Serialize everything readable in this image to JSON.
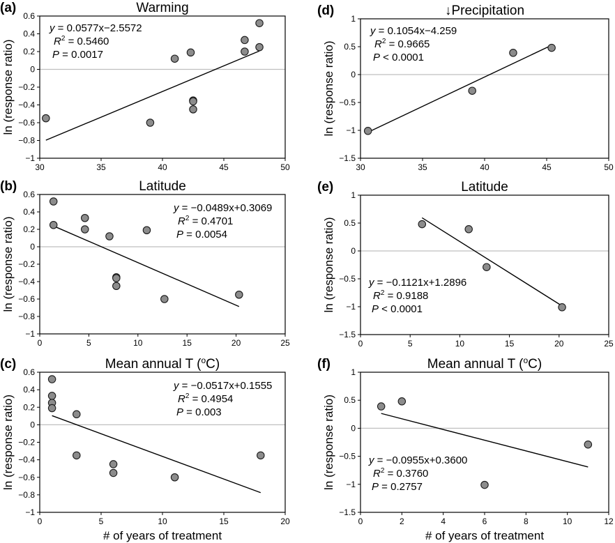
{
  "chart_data": [
    {
      "id": "a",
      "panel_label": "(a)",
      "type": "scatter",
      "title": "Warming",
      "xlabel": "",
      "ylabel": "ln (response ratio)",
      "xlim": [
        30,
        50
      ],
      "ylim": [
        -1,
        0.6
      ],
      "xticks": [
        "30",
        "35",
        "40",
        "45",
        "50"
      ],
      "yticks": [
        "−1",
        "−0.8",
        "−0.6",
        "−0.4",
        "−0.2",
        "0",
        "0.2",
        "0.4",
        "0.6"
      ],
      "ytick_values": [
        -1,
        -0.8,
        -0.6,
        -0.4,
        -0.2,
        0,
        0.2,
        0.4,
        0.6
      ],
      "xtick_values": [
        30,
        35,
        40,
        45,
        50
      ],
      "points": [
        [
          30.5,
          -0.55
        ],
        [
          39,
          -0.6
        ],
        [
          41,
          0.12
        ],
        [
          42.3,
          0.19
        ],
        [
          42.5,
          -0.35
        ],
        [
          42.5,
          -0.36
        ],
        [
          42.5,
          -0.45
        ],
        [
          46.7,
          0.33
        ],
        [
          46.7,
          0.2
        ],
        [
          47.9,
          0.52
        ],
        [
          47.9,
          0.25
        ]
      ],
      "fit": {
        "x": [
          30.5,
          47.9
        ],
        "slope": 0.0577,
        "intercept": -2.5572
      },
      "stats": {
        "eq": "y = 0.0577x−2.5572",
        "r2": "R2 = 0.5460",
        "p": "P = 0.0017"
      },
      "stats_pos": "top-left"
    },
    {
      "id": "b",
      "panel_label": "(b)",
      "type": "scatter",
      "title": "Latitude",
      "xlabel": "",
      "ylabel": "ln (response ratio)",
      "xlim": [
        0,
        25
      ],
      "ylim": [
        -1,
        0.6
      ],
      "xticks": [
        "0",
        "5",
        "10",
        "15",
        "20",
        "25"
      ],
      "xtick_values": [
        0,
        5,
        10,
        15,
        20,
        25
      ],
      "yticks": [
        "−1",
        "−0.8",
        "−0.6",
        "−0.4",
        "−0.2",
        "0",
        "0.2",
        "0.4",
        "0.6"
      ],
      "ytick_values": [
        -1,
        -0.8,
        -0.6,
        -0.4,
        -0.2,
        0,
        0.2,
        0.4,
        0.6
      ],
      "points": [
        [
          1.4,
          0.52
        ],
        [
          1.4,
          0.25
        ],
        [
          4.6,
          0.33
        ],
        [
          4.6,
          0.2
        ],
        [
          7.1,
          0.12
        ],
        [
          7.8,
          -0.35
        ],
        [
          7.8,
          -0.36
        ],
        [
          7.8,
          -0.45
        ],
        [
          10.9,
          0.19
        ],
        [
          12.7,
          -0.6
        ],
        [
          20.3,
          -0.55
        ]
      ],
      "fit": {
        "x": [
          1.4,
          20.3
        ],
        "slope": -0.0489,
        "intercept": 0.3069
      },
      "stats": {
        "eq": "y = −0.0489x+0.3069",
        "r2": "R2 = 0.4701",
        "p": "P = 0.0054"
      },
      "stats_pos": "top-right"
    },
    {
      "id": "c",
      "panel_label": "(c)",
      "type": "scatter",
      "title": "Mean annual T (oC)",
      "xlabel": "# of years of treatment",
      "ylabel": "ln (response ratio)",
      "xlim": [
        0,
        20
      ],
      "ylim": [
        -1,
        0.6
      ],
      "xticks": [
        "0",
        "5",
        "10",
        "15",
        "20"
      ],
      "xtick_values": [
        0,
        5,
        10,
        15,
        20
      ],
      "yticks": [
        "−1",
        "−0.8",
        "−0.6",
        "−0.4",
        "−0.2",
        "0",
        "0.2",
        "0.4",
        "0.6"
      ],
      "ytick_values": [
        -1,
        -0.8,
        -0.6,
        -0.4,
        -0.2,
        0,
        0.2,
        0.4,
        0.6
      ],
      "points": [
        [
          1,
          0.52
        ],
        [
          1,
          0.33
        ],
        [
          1,
          0.25
        ],
        [
          1,
          0.19
        ],
        [
          3,
          0.12
        ],
        [
          3,
          -0.35
        ],
        [
          6,
          -0.45
        ],
        [
          6,
          -0.55
        ],
        [
          11,
          -0.6
        ],
        [
          18,
          -0.35
        ]
      ],
      "fit": {
        "x": [
          1,
          18
        ],
        "slope": -0.0517,
        "intercept": 0.1555
      },
      "stats": {
        "eq": "y = −0.0517x+0.1555",
        "r2": "R2 = 0.4954",
        "p": "P = 0.003"
      },
      "stats_pos": "top-right"
    },
    {
      "id": "d",
      "panel_label": "(d)",
      "type": "scatter",
      "title": "↓Precipitation",
      "xlabel": "",
      "ylabel": "ln (response ratio)",
      "xlim": [
        30,
        50
      ],
      "ylim": [
        -1.5,
        1
      ],
      "xticks": [
        "30",
        "35",
        "40",
        "45",
        "50"
      ],
      "xtick_values": [
        30,
        35,
        40,
        45,
        50
      ],
      "yticks": [
        "−1.5",
        "−1",
        "−0.5",
        "0",
        "0.5",
        "1"
      ],
      "ytick_values": [
        -1.5,
        -1,
        -0.5,
        0,
        0.5,
        1
      ],
      "points": [
        [
          30.6,
          -1.01
        ],
        [
          39,
          -0.29
        ],
        [
          42.3,
          0.39
        ],
        [
          45.4,
          0.48
        ]
      ],
      "fit": {
        "x": [
          30.6,
          45.4
        ],
        "slope": 0.1054,
        "intercept": -4.259
      },
      "stats": {
        "eq": "y = 0.1054x−4.259",
        "r2": "R2 = 0.9665",
        "p": "P < 0.0001"
      },
      "stats_pos": "top-left"
    },
    {
      "id": "e",
      "panel_label": "(e)",
      "type": "scatter",
      "title": "Latitude",
      "xlabel": "",
      "ylabel": "ln (response ratio)",
      "xlim": [
        0,
        25
      ],
      "ylim": [
        -1.5,
        1
      ],
      "xticks": [
        "0",
        "5",
        "10",
        "15",
        "20",
        "25"
      ],
      "xtick_values": [
        0,
        5,
        10,
        15,
        20,
        25
      ],
      "yticks": [
        "−1.5",
        "−1",
        "−0.5",
        "0",
        "0.5",
        "1"
      ],
      "ytick_values": [
        -1.5,
        -1,
        -0.5,
        0,
        0.5,
        1
      ],
      "points": [
        [
          6.2,
          0.48
        ],
        [
          10.9,
          0.39
        ],
        [
          12.7,
          -0.29
        ],
        [
          20.3,
          -1.01
        ]
      ],
      "fit": {
        "x": [
          6.2,
          20.3
        ],
        "slope": -0.1121,
        "intercept": 1.2896
      },
      "stats": {
        "eq": "y = −0.1121x+1.2896",
        "r2": "R2 = 0.9188",
        "p": "P < 0.0001"
      },
      "stats_pos": "bottom-left"
    },
    {
      "id": "f",
      "panel_label": "(f)",
      "type": "scatter",
      "title": "Mean annual T (oC)",
      "xlabel": "# of years of treatment",
      "ylabel": "ln (response ratio)",
      "xlim": [
        0,
        12
      ],
      "ylim": [
        -1.5,
        1
      ],
      "xticks": [
        "0",
        "2",
        "4",
        "6",
        "8",
        "10",
        "12"
      ],
      "xtick_values": [
        0,
        2,
        4,
        6,
        8,
        10,
        12
      ],
      "yticks": [
        "−1.5",
        "−1",
        "−0.5",
        "0",
        "0.5",
        "1"
      ],
      "ytick_values": [
        -1.5,
        -1,
        -0.5,
        0,
        0.5,
        1
      ],
      "points": [
        [
          1,
          0.39
        ],
        [
          2,
          0.48
        ],
        [
          6,
          -1.01
        ],
        [
          11,
          -0.29
        ]
      ],
      "fit": {
        "x": [
          1,
          11
        ],
        "slope": -0.0955,
        "intercept": 0.36
      },
      "stats": {
        "eq": "y = −0.0955x+0.3600",
        "r2": "R2 = 0.3760",
        "p": "P = 0.2757"
      },
      "stats_pos": "bottom-left"
    }
  ],
  "colors": {
    "point_fill": "#8c8c8c",
    "point_stroke": "#1a1a1a",
    "zero_line": "#bfbfbf",
    "axis": "#000000"
  }
}
